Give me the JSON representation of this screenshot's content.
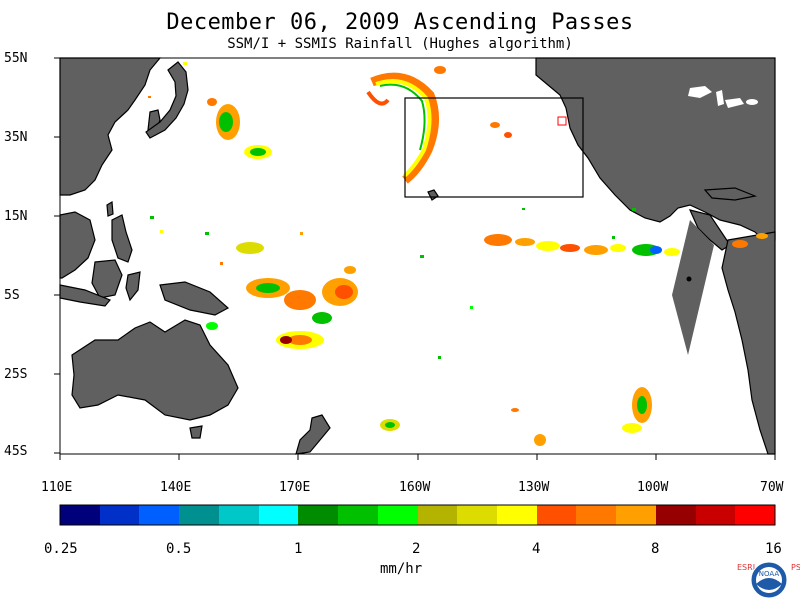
{
  "title": "December 06, 2009  Ascending Passes",
  "subtitle": "SSM/I + SSMIS Rainfall (Hughes algorithm)",
  "lat_labels": [
    "55N",
    "35N",
    "15N",
    "5S",
    "25S",
    "45S"
  ],
  "lon_labels": [
    "110E",
    "140E",
    "170E",
    "160W",
    "130W",
    "100W",
    "70W"
  ],
  "colorbar": {
    "colors": [
      "#00007a",
      "#0030c8",
      "#0060ff",
      "#009090",
      "#00c8c8",
      "#00ffff",
      "#008c00",
      "#00c000",
      "#00ff00",
      "#b4b400",
      "#dcdc00",
      "#ffff00",
      "#ff5000",
      "#ff7800",
      "#ffa000",
      "#960000",
      "#c80000",
      "#ff0000"
    ],
    "tick_labels": [
      "0.25",
      "0.5",
      "1",
      "2",
      "4",
      "8",
      "16"
    ],
    "units": "mm/hr"
  },
  "colors": {
    "land": "#606060",
    "ocean": "#ffffff",
    "coast": "#000000",
    "box": "#000000"
  },
  "logo": {
    "name": "NOAA",
    "left_letters": "ESRL",
    "right_letters": "PSD"
  }
}
